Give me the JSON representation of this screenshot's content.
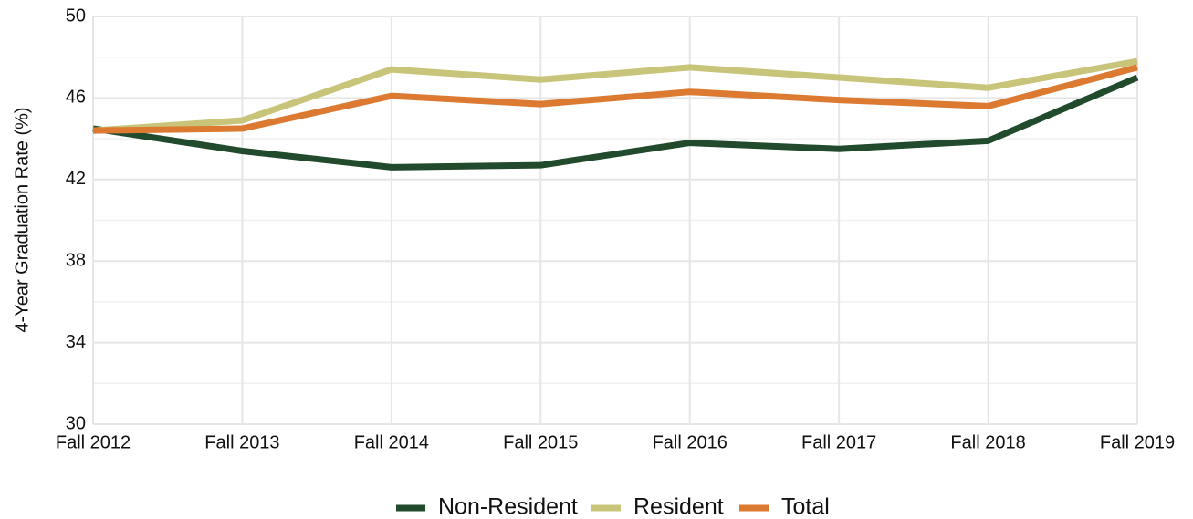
{
  "chart_data": {
    "type": "line",
    "y_label": "4-Year Graduation Rate (%)",
    "categories": [
      "Fall 2012",
      "Fall 2013",
      "Fall 2014",
      "Fall 2015",
      "Fall 2016",
      "Fall 2017",
      "Fall 2018",
      "Fall 2019"
    ],
    "series": [
      {
        "name": "Non-Resident",
        "color": "#224a2c",
        "values": [
          44.5,
          43.4,
          42.6,
          42.7,
          43.8,
          43.5,
          43.9,
          47.0
        ]
      },
      {
        "name": "Resident",
        "color": "#c8c47a",
        "values": [
          44.4,
          44.9,
          47.4,
          46.9,
          47.5,
          47.0,
          46.5,
          47.8
        ]
      },
      {
        "name": "Total",
        "color": "#dc7a31",
        "values": [
          44.4,
          44.5,
          46.1,
          45.7,
          46.3,
          45.9,
          45.6,
          47.5
        ]
      }
    ],
    "ylim": [
      30,
      50
    ],
    "yticks": [
      30,
      34,
      38,
      42,
      46,
      50
    ],
    "minor_yticks": [
      32,
      36,
      40,
      44,
      48
    ],
    "grid": true,
    "legend": "bottom"
  }
}
